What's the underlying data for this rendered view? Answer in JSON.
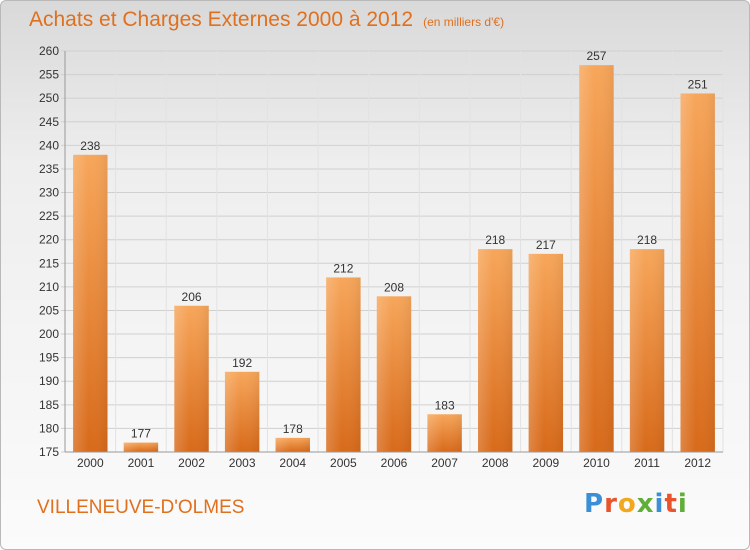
{
  "header": {
    "title": "Achats et Charges Externes 2000 à 2012",
    "subtitle": "(en milliers d'€)"
  },
  "footer": {
    "town": "VILLENEUVE-D'OLMES",
    "logo_letters": [
      {
        "char": "P",
        "color": "#3a8fd6"
      },
      {
        "char": "r",
        "color": "#e8542b"
      },
      {
        "char": "o",
        "color": "#f2a81d"
      },
      {
        "char": "x",
        "color": "#5fae38"
      },
      {
        "char": "i",
        "color": "#3a8fd6"
      },
      {
        "char": "t",
        "color": "#e8542b"
      },
      {
        "char": "i",
        "color": "#5fae38"
      }
    ]
  },
  "colors": {
    "title": "#e0701e",
    "bar_top": "#f7a65a",
    "bar_bottom": "#d86a1a",
    "grid": "#d0d0d0"
  },
  "chart_data": {
    "type": "bar",
    "title": "Achats et Charges Externes 2000 à 2012",
    "subtitle": "(en milliers d'€)",
    "categories": [
      "2000",
      "2001",
      "2002",
      "2003",
      "2004",
      "2005",
      "2006",
      "2007",
      "2008",
      "2009",
      "2010",
      "2011",
      "2012"
    ],
    "values": [
      238,
      177,
      206,
      192,
      178,
      212,
      208,
      183,
      218,
      217,
      257,
      218,
      251
    ],
    "ylim": [
      175,
      260
    ],
    "ytick_step": 5,
    "grid": true,
    "xlabel": "",
    "ylabel": ""
  }
}
